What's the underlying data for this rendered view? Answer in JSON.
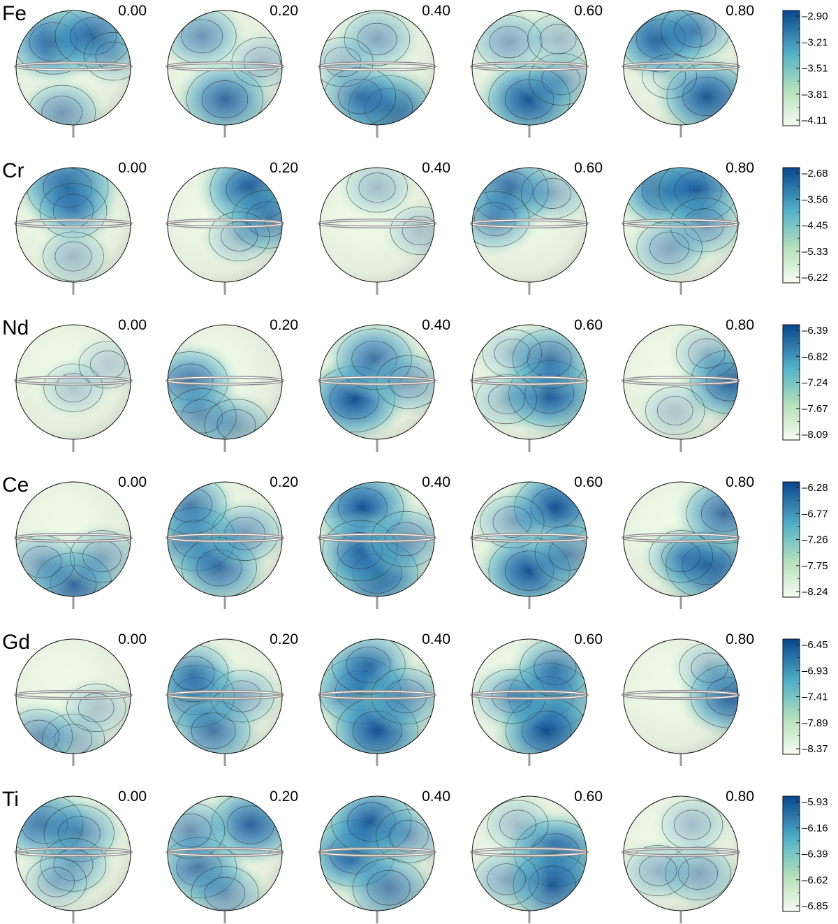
{
  "figure": {
    "type": "stellar-surface-abundance-maps",
    "phases": [
      "0.00",
      "0.20",
      "0.40",
      "0.60",
      "0.80"
    ],
    "rows": [
      {
        "element": "Fe",
        "colorbar_ticks": [
          "-2.90",
          "-3.21",
          "-3.51",
          "-3.81",
          "-4.11"
        ],
        "spots": [
          [
            [
              -0.35,
              -0.45,
              0.95
            ],
            [
              0.35,
              -0.55,
              0.85
            ],
            [
              -0.2,
              0.78,
              0.55
            ],
            [
              0.7,
              -0.2,
              0.3
            ]
          ],
          [
            [
              0.0,
              0.55,
              0.85
            ],
            [
              -0.4,
              -0.55,
              0.6
            ],
            [
              0.65,
              -0.1,
              0.35
            ]
          ],
          [
            [
              0.2,
              0.7,
              0.95
            ],
            [
              -0.3,
              0.5,
              0.7
            ],
            [
              0.0,
              -0.5,
              0.5
            ],
            [
              -0.6,
              -0.1,
              0.35
            ]
          ],
          [
            [
              0.0,
              0.55,
              1.0
            ],
            [
              0.55,
              0.2,
              0.45
            ],
            [
              -0.35,
              -0.45,
              0.5
            ],
            [
              0.5,
              -0.5,
              0.35
            ]
          ],
          [
            [
              -0.35,
              -0.5,
              1.0
            ],
            [
              0.45,
              0.5,
              0.95
            ],
            [
              0.25,
              -0.65,
              0.6
            ],
            [
              -0.2,
              0.15,
              0.15
            ]
          ]
        ]
      },
      {
        "element": "Cr",
        "colorbar_ticks": [
          "-2.68",
          "-3.56",
          "-4.45",
          "-5.33",
          "-6.22"
        ],
        "spots": [
          [
            [
              -0.1,
              -0.65,
              1.0
            ],
            [
              0.0,
              -0.25,
              0.55
            ],
            [
              0.0,
              0.55,
              0.35
            ]
          ],
          [
            [
              0.45,
              -0.62,
              1.0
            ],
            [
              0.75,
              -0.1,
              0.7
            ],
            [
              0.25,
              0.2,
              0.35
            ]
          ],
          [
            [
              0.0,
              -0.65,
              0.35
            ],
            [
              0.75,
              0.1,
              0.3
            ]
          ],
          [
            [
              -0.35,
              -0.6,
              0.9
            ],
            [
              -0.6,
              -0.1,
              0.6
            ],
            [
              0.4,
              -0.55,
              0.4
            ]
          ],
          [
            [
              -0.25,
              -0.6,
              1.0
            ],
            [
              0.3,
              -0.6,
              0.9
            ],
            [
              0.4,
              0.0,
              0.55
            ],
            [
              -0.2,
              0.4,
              0.5
            ]
          ]
        ]
      },
      {
        "element": "Nd",
        "colorbar_ticks": [
          "-6.39",
          "-6.82",
          "-7.24",
          "-7.67",
          "-8.09"
        ],
        "spots": [
          [
            [
              0.0,
              0.1,
              0.3
            ],
            [
              0.6,
              -0.3,
              0.25
            ]
          ],
          [
            [
              -0.6,
              0.0,
              0.8
            ],
            [
              -0.4,
              0.6,
              0.6
            ],
            [
              0.2,
              0.75,
              0.45
            ]
          ],
          [
            [
              -0.4,
              0.3,
              1.0
            ],
            [
              -0.05,
              -0.4,
              0.8
            ],
            [
              0.55,
              0.0,
              0.5
            ]
          ],
          [
            [
              0.35,
              0.2,
              1.0
            ],
            [
              0.35,
              -0.4,
              0.75
            ],
            [
              -0.4,
              0.3,
              0.35
            ],
            [
              -0.3,
              -0.5,
              0.3
            ]
          ],
          [
            [
              0.85,
              0.0,
              0.9
            ],
            [
              0.45,
              -0.5,
              0.35
            ],
            [
              -0.1,
              0.5,
              0.3
            ]
          ]
        ]
      },
      {
        "element": "Ce",
        "colorbar_ticks": [
          "-6.28",
          "-6.77",
          "-7.26",
          "-7.75",
          "-8.24"
        ],
        "spots": [
          [
            [
              0.0,
              0.78,
              0.85
            ],
            [
              -0.55,
              0.4,
              0.5
            ],
            [
              0.5,
              0.3,
              0.45
            ]
          ],
          [
            [
              -0.5,
              0.0,
              0.9
            ],
            [
              -0.1,
              0.5,
              0.8
            ],
            [
              0.35,
              -0.1,
              0.55
            ],
            [
              -0.6,
              -0.6,
              0.7
            ]
          ],
          [
            [
              -0.25,
              -0.55,
              1.0
            ],
            [
              0.0,
              0.6,
              1.0
            ],
            [
              -0.3,
              0.2,
              0.8
            ],
            [
              0.5,
              0.0,
              0.6
            ]
          ],
          [
            [
              0.45,
              -0.55,
              1.0
            ],
            [
              0.0,
              0.55,
              1.0
            ],
            [
              -0.3,
              -0.3,
              0.45
            ],
            [
              0.7,
              0.25,
              0.6
            ]
          ],
          [
            [
              0.45,
              0.45,
              1.0
            ],
            [
              0.75,
              -0.45,
              0.8
            ],
            [
              0.0,
              0.3,
              0.45
            ]
          ]
        ]
      },
      {
        "element": "Gd",
        "colorbar_ticks": [
          "-6.45",
          "-6.93",
          "-7.41",
          "-7.89",
          "-8.37"
        ],
        "spots": [
          [
            [
              0.0,
              0.75,
              0.4
            ],
            [
              -0.6,
              0.7,
              0.55
            ],
            [
              0.4,
              0.2,
              0.3
            ]
          ],
          [
            [
              -0.5,
              0.0,
              0.85
            ],
            [
              -0.2,
              0.6,
              0.75
            ],
            [
              0.3,
              0.0,
              0.45
            ],
            [
              -0.55,
              -0.4,
              0.65
            ]
          ],
          [
            [
              -0.3,
              -0.1,
              1.0
            ],
            [
              0.0,
              0.6,
              1.0
            ],
            [
              -0.15,
              -0.55,
              0.75
            ],
            [
              0.5,
              0.0,
              0.6
            ]
          ],
          [
            [
              0.35,
              0.0,
              1.0
            ],
            [
              0.3,
              0.6,
              1.0
            ],
            [
              -0.3,
              0.0,
              0.55
            ],
            [
              0.45,
              -0.5,
              0.65
            ]
          ],
          [
            [
              0.85,
              0.0,
              0.9
            ],
            [
              0.5,
              -0.5,
              0.35
            ]
          ]
        ]
      },
      {
        "element": "Ti",
        "colorbar_ticks": [
          "-5.93",
          "-6.16",
          "-6.39",
          "-6.62",
          "-6.85"
        ],
        "spots": [
          [
            [
              -0.5,
              -0.5,
              0.85
            ],
            [
              0.1,
              -0.35,
              0.65
            ],
            [
              0.0,
              0.2,
              0.5
            ],
            [
              -0.3,
              0.5,
              0.35
            ]
          ],
          [
            [
              0.45,
              -0.5,
              0.9
            ],
            [
              -0.45,
              0.25,
              0.8
            ],
            [
              0.0,
              0.7,
              0.55
            ],
            [
              -0.6,
              -0.4,
              0.6
            ]
          ],
          [
            [
              -0.4,
              0.0,
              1.0
            ],
            [
              -0.1,
              -0.55,
              0.95
            ],
            [
              0.2,
              0.6,
              0.7
            ],
            [
              0.55,
              -0.3,
              0.5
            ]
          ],
          [
            [
              0.45,
              0.0,
              1.0
            ],
            [
              0.4,
              0.55,
              0.9
            ],
            [
              -0.4,
              0.45,
              0.45
            ],
            [
              -0.2,
              -0.5,
              0.35
            ]
          ],
          [
            [
              0.3,
              0.35,
              0.5
            ],
            [
              -0.4,
              0.3,
              0.4
            ],
            [
              0.2,
              -0.5,
              0.35
            ]
          ]
        ]
      }
    ]
  },
  "colormap": {
    "high": "#08468e",
    "mid": "#54b3c9",
    "low_mid": "#b6e1bc",
    "low": "#f7fcf0"
  }
}
